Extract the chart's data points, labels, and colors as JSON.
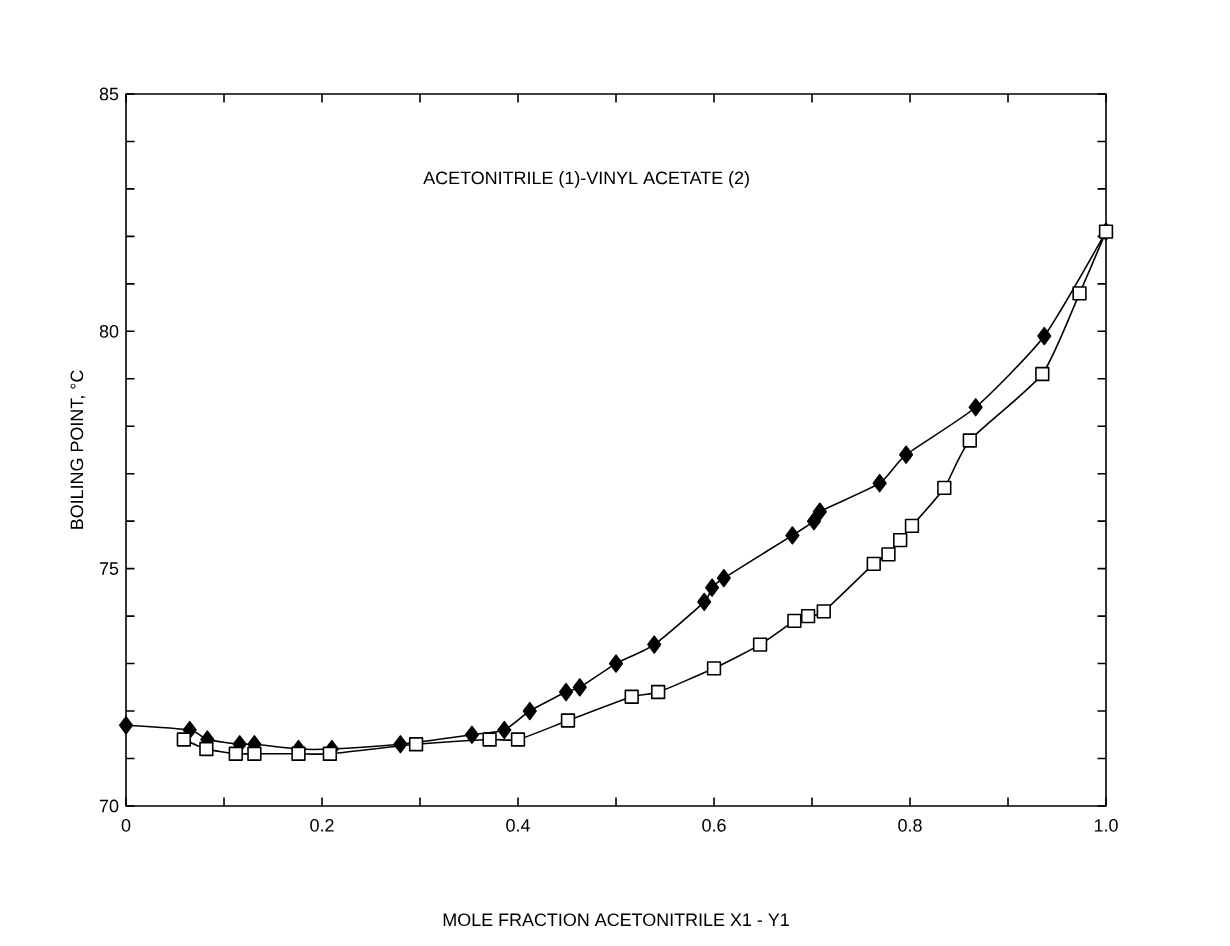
{
  "chart_data": {
    "type": "line",
    "title": "ACETONITRILE (1)-VINYL ACETATE (2)",
    "xlabel": "MOLE FRACTION ACETONITRILE  X1 - Y1",
    "ylabel": "BOILING POINT, °C",
    "xlim": [
      0,
      1
    ],
    "ylim": [
      70,
      85
    ],
    "xticks": [
      0,
      {
        "value": 0.1,
        "label": null
      },
      0.2,
      {
        "value": 0.3,
        "label": null
      },
      0.4,
      {
        "value": 0.5,
        "label": null
      },
      0.6,
      {
        "value": 0.7,
        "label": null
      },
      0.8,
      {
        "value": 0.9,
        "label": null
      },
      {
        "value": 1,
        "label": "1.0"
      }
    ],
    "yticks": [
      70,
      {
        "value": 71,
        "label": null
      },
      {
        "value": 72,
        "label": null
      },
      {
        "value": 73,
        "label": null
      },
      {
        "value": 74,
        "label": null
      },
      75,
      {
        "value": 76,
        "label": null
      },
      {
        "value": 77,
        "label": null
      },
      {
        "value": 78,
        "label": null
      },
      {
        "value": 79,
        "label": null
      },
      80,
      {
        "value": 81,
        "label": null
      },
      {
        "value": 82,
        "label": null
      },
      {
        "value": 83,
        "label": null
      },
      {
        "value": 84,
        "label": null
      },
      85
    ],
    "series": [
      {
        "color": "#000000",
        "marker": "diamond",
        "x": [
          0,
          0.065,
          0.083,
          0.116,
          0.131,
          0.176,
          0.21,
          0.28,
          0.353,
          0.386,
          0.412,
          0.449,
          0.463,
          0.5,
          0.539,
          0.59,
          0.598,
          0.61,
          0.68,
          0.702,
          0.708,
          0.769,
          0.796,
          0.867,
          0.937,
          1.0
        ],
        "values": [
          71.7,
          71.6,
          71.4,
          71.3,
          71.3,
          71.2,
          71.2,
          71.3,
          71.5,
          71.6,
          72.0,
          72.4,
          72.5,
          73.0,
          73.4,
          74.3,
          74.6,
          74.8,
          75.7,
          76.0,
          76.2,
          76.8,
          77.4,
          78.4,
          79.9,
          82.1
        ]
      },
      {
        "color": "#000000",
        "marker": "square",
        "x": [
          0.059,
          0.082,
          0.112,
          0.131,
          0.176,
          0.208,
          0.296,
          0.371,
          0.4,
          0.451,
          0.516,
          0.543,
          0.6,
          0.647,
          0.682,
          0.696,
          0.712,
          0.763,
          0.778,
          0.79,
          0.802,
          0.835,
          0.861,
          0.935,
          0.973,
          1.0
        ],
        "values": [
          71.4,
          71.2,
          71.1,
          71.1,
          71.1,
          71.1,
          71.3,
          71.4,
          71.4,
          71.8,
          72.3,
          72.4,
          72.9,
          73.4,
          73.9,
          74.0,
          74.1,
          75.1,
          75.3,
          75.6,
          75.9,
          76.7,
          77.7,
          79.1,
          80.8,
          82.1
        ]
      }
    ]
  }
}
